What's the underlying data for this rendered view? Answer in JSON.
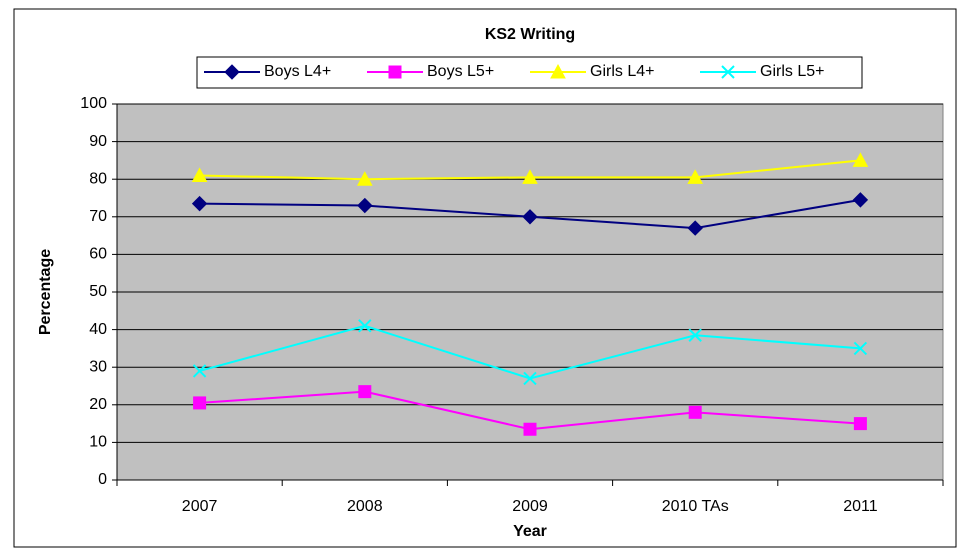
{
  "chart_data": {
    "type": "line",
    "title": "KS2 Writing",
    "x_label": "Year",
    "y_label": "Percentage",
    "categories": [
      "2007",
      "2008",
      "2009",
      "2010 TAs",
      "2011"
    ],
    "series": [
      {
        "name": "Boys L4+",
        "color": "#000080",
        "marker": "diamond",
        "values": [
          73.5,
          73,
          70,
          67,
          74.5
        ]
      },
      {
        "name": "Boys L5+",
        "color": "#ff00ff",
        "marker": "square",
        "values": [
          20.5,
          23.5,
          13.5,
          18,
          15
        ]
      },
      {
        "name": "Girls L4+",
        "color": "#ffff00",
        "marker": "triangle",
        "values": [
          81,
          80,
          80.5,
          80.5,
          85
        ]
      },
      {
        "name": "Girls L5+",
        "color": "#00ffff",
        "marker": "x",
        "values": [
          29,
          41,
          27,
          38.5,
          35
        ]
      }
    ],
    "ylim": [
      0,
      100
    ],
    "yticks": [
      0,
      10,
      20,
      30,
      40,
      50,
      60,
      70,
      80,
      90,
      100
    ],
    "grid": true,
    "legend": "top"
  }
}
